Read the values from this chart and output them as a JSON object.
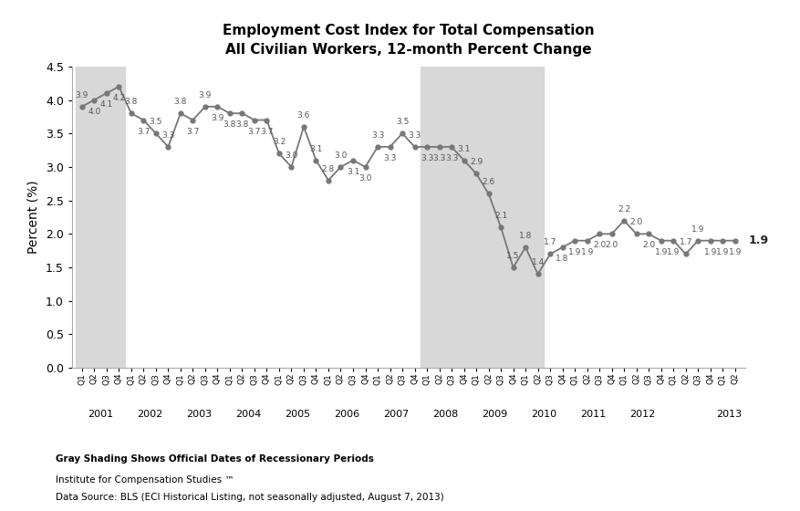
{
  "title_line1": "Employment Cost Index for Total Compensation",
  "title_line2": "All Civilian Workers, 12-month Percent Change",
  "ylabel": "Percent (%)",
  "ylim": [
    0.0,
    4.5
  ],
  "yticks": [
    0.0,
    0.5,
    1.0,
    1.5,
    2.0,
    2.5,
    3.0,
    3.5,
    4.0,
    4.5
  ],
  "quarter_labels": [
    "Q1",
    "Q2",
    "Q3",
    "Q4"
  ],
  "year_labels": [
    "2001",
    "2002",
    "2003",
    "2004",
    "2005",
    "2006",
    "2007",
    "2008",
    "2009",
    "2010",
    "2011",
    "2012",
    "2013"
  ],
  "values": [
    3.9,
    4.0,
    4.1,
    4.2,
    3.8,
    3.7,
    3.5,
    3.3,
    3.8,
    3.7,
    3.9,
    3.9,
    3.8,
    3.8,
    3.7,
    3.7,
    3.2,
    3.0,
    3.6,
    3.1,
    2.8,
    3.0,
    3.1,
    3.0,
    3.3,
    3.3,
    3.5,
    3.3,
    3.3,
    3.3,
    3.3,
    3.1,
    2.9,
    2.6,
    2.1,
    1.5,
    1.8,
    1.4,
    1.7,
    1.8,
    1.9,
    1.9,
    2.0,
    2.0,
    2.2,
    2.0,
    2.0,
    1.9,
    1.9,
    1.7,
    1.9,
    1.9,
    1.9,
    1.9
  ],
  "value_labels": [
    "3.9",
    "4.0",
    "4.1",
    "4.2",
    "3.8",
    "3.7",
    "3.5",
    "3.3",
    "3.8",
    "3.7",
    "3.9",
    "3.9",
    "3.8",
    "3.8",
    "3.7",
    "3.7",
    "3.2",
    "3.0",
    "3.6",
    "3.1",
    "2.8",
    "3.0",
    "3.1",
    "3.0",
    "3.3",
    "3.3",
    "3.5",
    "3.3",
    "3.3",
    "3.3",
    "3.3",
    "3.1",
    "2.9",
    "2.6",
    "2.1",
    "1.5",
    "1.8",
    "1.4",
    "1.7",
    "1.8",
    "1.9",
    "1.9",
    "2.0",
    "2.0",
    "2.2",
    "2.0",
    "2.0",
    "1.9",
    "1.9",
    "1.7",
    "1.9",
    "1.9",
    "1.9",
    "1.9"
  ],
  "last_label_value": "1.9",
  "recession_shades": [
    {
      "start": 0,
      "end": 3
    },
    {
      "start": 28,
      "end": 37
    }
  ],
  "line_color": "#777777",
  "marker_color": "#777777",
  "shade_color": "#d8d8d8",
  "background_color": "#ffffff",
  "label_color": "#555555",
  "footnote_bold": "Gray Shading Shows Official Dates of Recessionary Periods",
  "footnote1": "Institute for Compensation Studies ™",
  "footnote2": "Data Source: BLS (ECI Historical Listing, not seasonally adjusted, August 7, 2013)"
}
